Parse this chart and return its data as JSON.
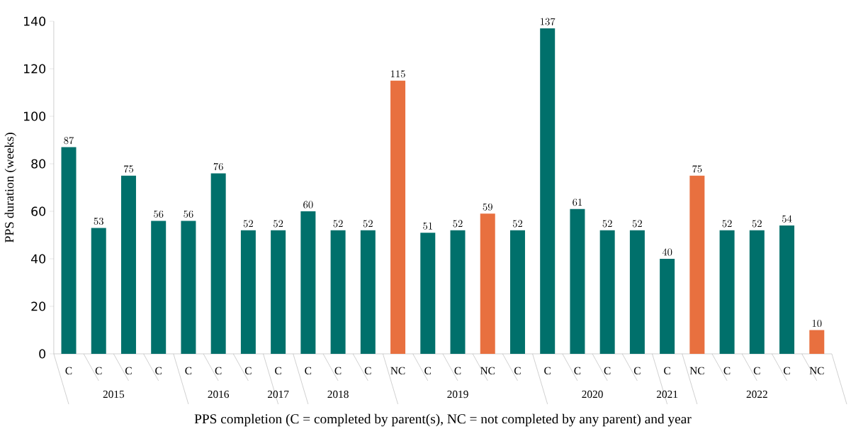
{
  "chart_data": {
    "type": "bar",
    "ylabel": "PPS duration (weeks)",
    "xlabel": "PPS completion (C = completed by parent(s), NC = not completed by any parent) and year",
    "categories": [
      "C",
      "C",
      "C",
      "C",
      "C",
      "C",
      "C",
      "C",
      "C",
      "C",
      "C",
      "NC",
      "C",
      "C",
      "NC",
      "C",
      "C",
      "C",
      "C",
      "C",
      "C",
      "NC",
      "C",
      "C",
      "C",
      "NC"
    ],
    "values": [
      87,
      53,
      75,
      56,
      56,
      76,
      52,
      52,
      60,
      52,
      52,
      115,
      51,
      52,
      59,
      52,
      137,
      61,
      52,
      52,
      40,
      75,
      52,
      52,
      54,
      10
    ],
    "colors": [
      "#00706b",
      "#00706b",
      "#00706b",
      "#00706b",
      "#00706b",
      "#00706b",
      "#00706b",
      "#00706b",
      "#00706b",
      "#00706b",
      "#00706b",
      "#e8703f",
      "#00706b",
      "#00706b",
      "#e8703f",
      "#00706b",
      "#00706b",
      "#00706b",
      "#00706b",
      "#00706b",
      "#00706b",
      "#e8703f",
      "#00706b",
      "#00706b",
      "#00706b",
      "#e8703f"
    ],
    "ylim": [
      0,
      140
    ],
    "yticks": [
      0,
      20,
      40,
      60,
      80,
      100,
      120,
      140
    ],
    "data_labels": true,
    "annotations": [
      "2015",
      "2016",
      "2017",
      "2018",
      "2019",
      "2020",
      "2021",
      "2022"
    ]
  }
}
